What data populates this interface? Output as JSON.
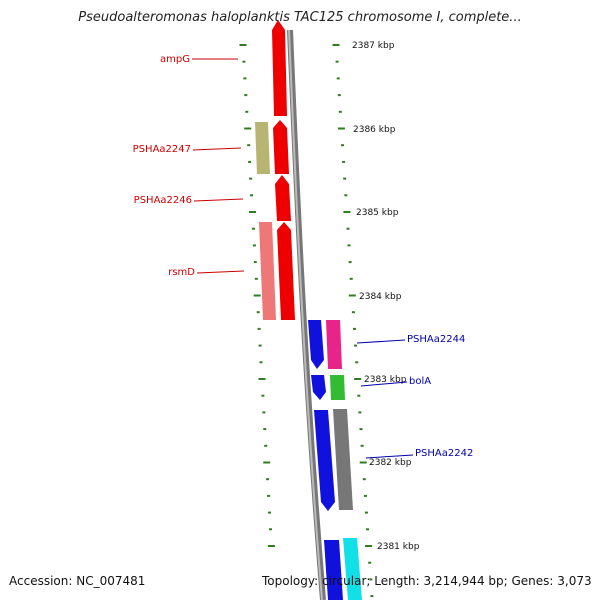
{
  "title": "Pseudoalteromonas haloplanktis TAC125 chromosome I, complete...",
  "footer": {
    "accession": "Accession: NC_007481",
    "summary": "Topology: circular; Length: 3,214,944 bp; Genes: 3,073"
  },
  "colors": {
    "left_labels": "#cc0000",
    "right_labels": "#0000aa",
    "ticks": "#2e7d1e",
    "backbone": "#888888"
  },
  "ticks": [
    {
      "label": "2387 kbp"
    },
    {
      "label": "2386 kbp"
    },
    {
      "label": "2385 kbp"
    },
    {
      "label": "2384 kbp"
    },
    {
      "label": "2383 kbp"
    },
    {
      "label": "2382 kbp"
    },
    {
      "label": "2381 kbp"
    }
  ],
  "genes_left": [
    {
      "name": "ampG",
      "color": "#ee0000"
    },
    {
      "name": "PSHAa2247",
      "color": "#b8b472"
    },
    {
      "name": "PSHAa2246",
      "color": "#ee0000"
    },
    {
      "name": "rsmD",
      "color": "#ee7777"
    }
  ],
  "genes_right": [
    {
      "name": "PSHAa2244",
      "color": "#e8238a"
    },
    {
      "name": "bolA",
      "color": "#33bb33"
    },
    {
      "name": "PSHAa2242",
      "color": "#777777"
    }
  ]
}
